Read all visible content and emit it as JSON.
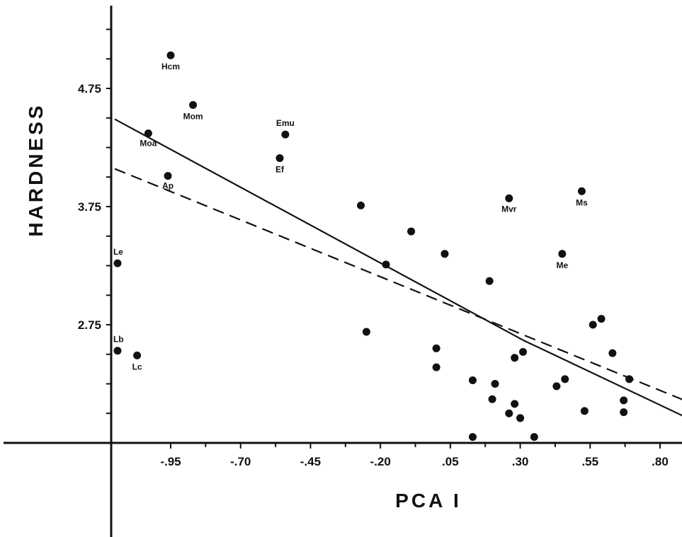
{
  "chart_data": {
    "type": "scatter",
    "xlabel": "PCA I",
    "ylabel": "HARDNESS",
    "x_ticks": [
      -0.95,
      -0.7,
      -0.45,
      -0.2,
      0.05,
      0.3,
      0.55,
      0.8
    ],
    "x_tick_labels": [
      "-.95",
      "-.70",
      "-.45",
      "-.20",
      ".05",
      ".30",
      ".55",
      ".80"
    ],
    "y_ticks": [
      2.75,
      3.75,
      4.75
    ],
    "y_tick_labels": [
      "2.75",
      "3.75",
      "4.75"
    ],
    "xlim": [
      -1.17,
      1.0
    ],
    "ylim": [
      1.75,
      5.5
    ],
    "grid": false,
    "points": [
      {
        "x": -1.14,
        "y": 3.27,
        "label": "Le"
      },
      {
        "x": -1.14,
        "y": 2.53,
        "label": "Lb"
      },
      {
        "x": -1.07,
        "y": 2.49,
        "label": "Lc"
      },
      {
        "x": -1.03,
        "y": 4.37,
        "label": "Moa"
      },
      {
        "x": -0.96,
        "y": 4.01,
        "label": "Ap"
      },
      {
        "x": -0.95,
        "y": 5.03,
        "label": "Hcm"
      },
      {
        "x": -0.87,
        "y": 4.61,
        "label": "Mom"
      },
      {
        "x": -0.54,
        "y": 4.36,
        "label": "Emu"
      },
      {
        "x": -0.56,
        "y": 4.16,
        "label": "Ef"
      },
      {
        "x": -0.27,
        "y": 3.76,
        "label": ""
      },
      {
        "x": -0.25,
        "y": 2.69,
        "label": ""
      },
      {
        "x": -0.18,
        "y": 3.26,
        "label": ""
      },
      {
        "x": -0.09,
        "y": 3.54,
        "label": ""
      },
      {
        "x": 0.03,
        "y": 3.35,
        "label": ""
      },
      {
        "x": 0.0,
        "y": 2.55,
        "label": ""
      },
      {
        "x": 0.0,
        "y": 2.39,
        "label": ""
      },
      {
        "x": 0.13,
        "y": 2.28,
        "label": ""
      },
      {
        "x": 0.13,
        "y": 1.8,
        "label": ""
      },
      {
        "x": 0.19,
        "y": 3.12,
        "label": ""
      },
      {
        "x": 0.2,
        "y": 2.12,
        "label": ""
      },
      {
        "x": 0.21,
        "y": 2.25,
        "label": ""
      },
      {
        "x": 0.26,
        "y": 3.82,
        "label": "Mvr"
      },
      {
        "x": 0.26,
        "y": 2.0,
        "label": ""
      },
      {
        "x": 0.28,
        "y": 2.08,
        "label": ""
      },
      {
        "x": 0.28,
        "y": 2.47,
        "label": ""
      },
      {
        "x": 0.31,
        "y": 2.52,
        "label": ""
      },
      {
        "x": 0.3,
        "y": 1.96,
        "label": ""
      },
      {
        "x": 0.35,
        "y": 1.8,
        "label": ""
      },
      {
        "x": 0.43,
        "y": 2.23,
        "label": ""
      },
      {
        "x": 0.45,
        "y": 3.35,
        "label": "Me"
      },
      {
        "x": 0.46,
        "y": 2.29,
        "label": ""
      },
      {
        "x": 0.52,
        "y": 3.88,
        "label": "Ms"
      },
      {
        "x": 0.53,
        "y": 2.02,
        "label": ""
      },
      {
        "x": 0.56,
        "y": 2.75,
        "label": ""
      },
      {
        "x": 0.59,
        "y": 2.8,
        "label": ""
      },
      {
        "x": 0.63,
        "y": 2.51,
        "label": ""
      },
      {
        "x": 0.67,
        "y": 2.11,
        "label": ""
      },
      {
        "x": 0.67,
        "y": 2.01,
        "label": ""
      },
      {
        "x": 0.69,
        "y": 2.29,
        "label": ""
      }
    ],
    "lines": [
      {
        "style": "solid",
        "x": [
          -1.15,
          0.31
        ],
        "y": [
          4.49,
          2.62
        ]
      },
      {
        "style": "solid",
        "x": [
          0.31,
          0.97
        ],
        "y": [
          2.62,
          1.88
        ]
      },
      {
        "style": "dashed",
        "x": [
          -1.15,
          0.95
        ],
        "y": [
          4.07,
          2.05
        ]
      }
    ]
  }
}
